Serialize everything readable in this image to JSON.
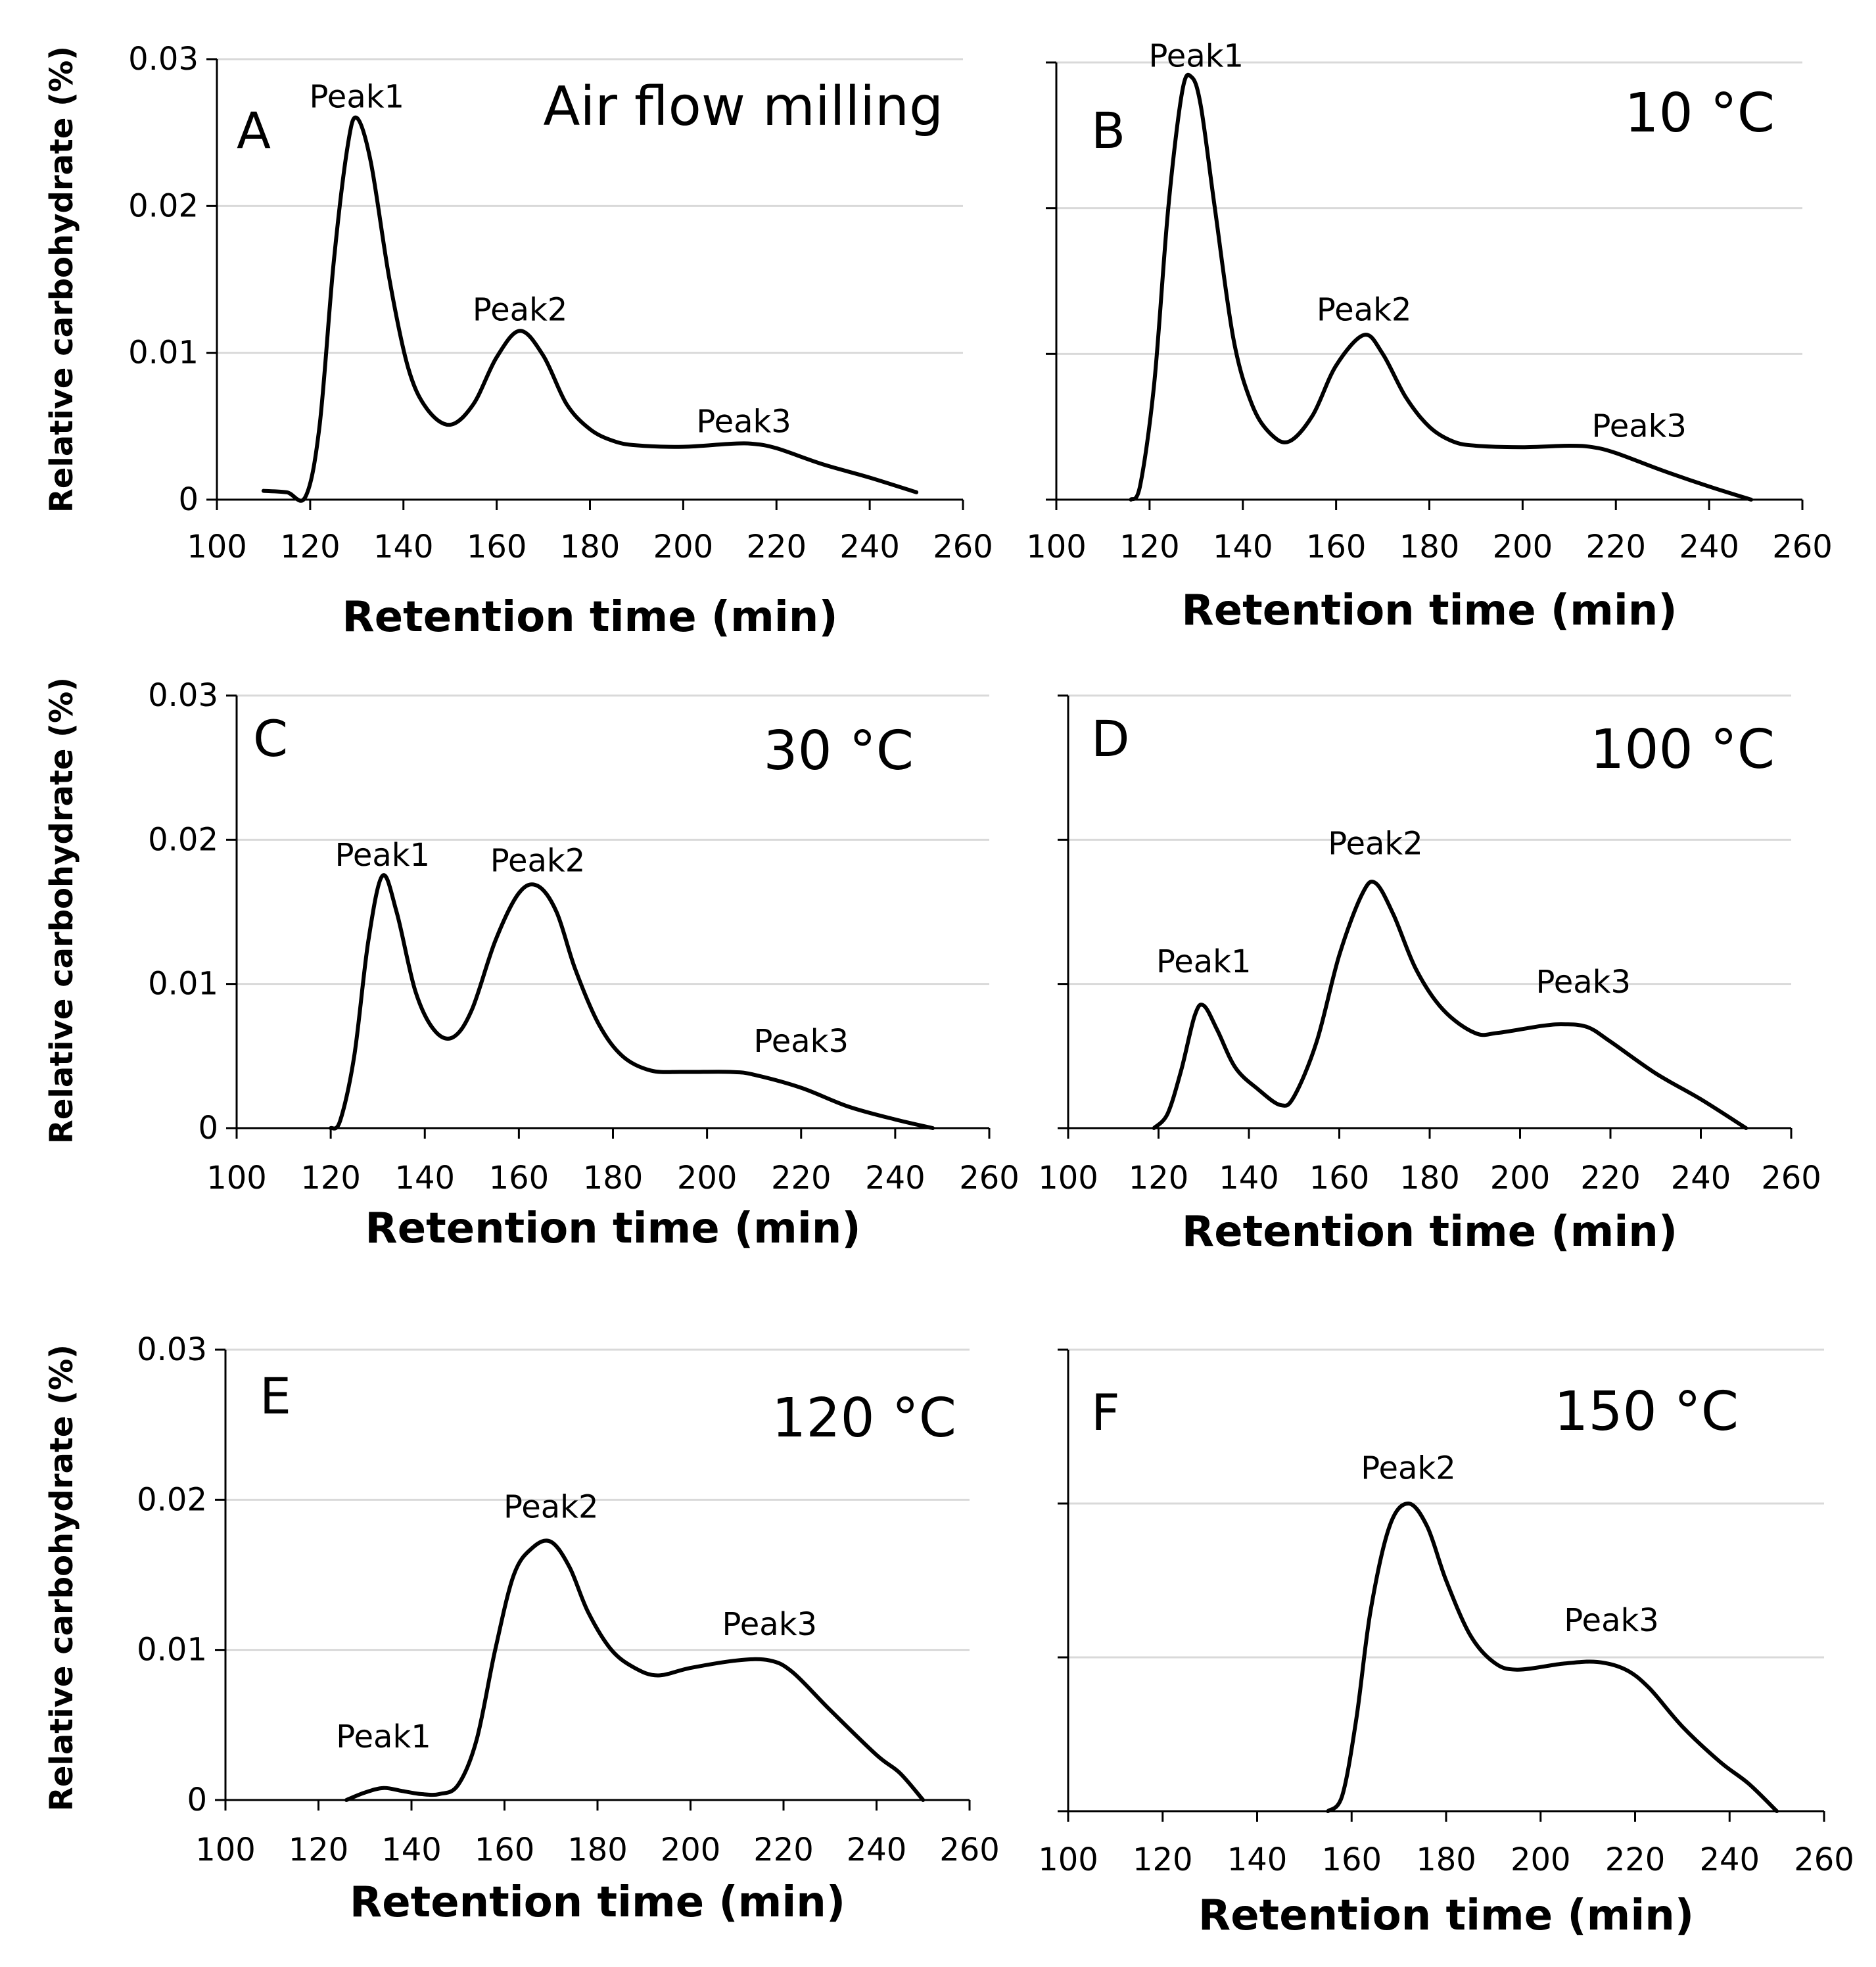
{
  "xlabel": "Retention time (min)",
  "ylabel": "Relative carbohydrate (%)",
  "x_ticks": [
    "100",
    "120",
    "140",
    "160",
    "180",
    "200",
    "220",
    "240",
    "260"
  ],
  "y_ticks": [
    "0",
    "0.01",
    "0.02",
    "0.03"
  ],
  "chart_data": [
    {
      "type": "line",
      "panel": "A",
      "title": "Air flow milling",
      "xlabel": "Retention time (min)",
      "ylabel": "Relative carbohydrate (%)",
      "xlim": [
        100,
        260
      ],
      "ylim": [
        0,
        0.03
      ],
      "show_y_tick_labels": true,
      "series": [
        {
          "name": "A",
          "points": [
            [
              110,
              0.0006
            ],
            [
              115,
              0.0005
            ],
            [
              119,
              0.0002
            ],
            [
              122,
              0.005
            ],
            [
              125,
              0.016
            ],
            [
              128,
              0.024
            ],
            [
              130,
              0.026
            ],
            [
              133,
              0.023
            ],
            [
              137,
              0.015
            ],
            [
              141,
              0.009
            ],
            [
              145,
              0.0062
            ],
            [
              150,
              0.0051
            ],
            [
              155,
              0.0065
            ],
            [
              160,
              0.0097
            ],
            [
              165,
              0.0115
            ],
            [
              170,
              0.0098
            ],
            [
              175,
              0.0065
            ],
            [
              180,
              0.0048
            ],
            [
              185,
              0.004
            ],
            [
              190,
              0.0037
            ],
            [
              200,
              0.0036
            ],
            [
              210,
              0.0038
            ],
            [
              215,
              0.0038
            ],
            [
              220,
              0.0035
            ],
            [
              230,
              0.0024
            ],
            [
              240,
              0.0015
            ],
            [
              250,
              0.0005
            ]
          ]
        }
      ],
      "annotations": [
        {
          "text": "Peak1",
          "x": 130,
          "y": 0.0267
        },
        {
          "text": "Peak2",
          "x": 165,
          "y": 0.0122
        },
        {
          "text": "Peak3",
          "x": 213,
          "y": 0.0046
        }
      ]
    },
    {
      "type": "line",
      "panel": "B",
      "title": "10 °C",
      "xlabel": "Retention time (min)",
      "ylabel": "",
      "xlim": [
        100,
        260
      ],
      "ylim": [
        0,
        0.03
      ],
      "show_y_tick_labels": false,
      "series": [
        {
          "name": "B",
          "points": [
            [
              116,
              0
            ],
            [
              118,
              0.001
            ],
            [
              121,
              0.008
            ],
            [
              124,
              0.02
            ],
            [
              127,
              0.028
            ],
            [
              129,
              0.029
            ],
            [
              131,
              0.027
            ],
            [
              134,
              0.02
            ],
            [
              138,
              0.011
            ],
            [
              142,
              0.0065
            ],
            [
              146,
              0.0045
            ],
            [
              150,
              0.004
            ],
            [
              155,
              0.0058
            ],
            [
              160,
              0.0092
            ],
            [
              166,
              0.0113
            ],
            [
              170,
              0.01
            ],
            [
              175,
              0.007
            ],
            [
              180,
              0.005
            ],
            [
              185,
              0.004
            ],
            [
              190,
              0.0037
            ],
            [
              200,
              0.0036
            ],
            [
              210,
              0.0037
            ],
            [
              215,
              0.0036
            ],
            [
              220,
              0.0032
            ],
            [
              230,
              0.002
            ],
            [
              240,
              0.0009
            ],
            [
              249,
              0
            ]
          ]
        }
      ],
      "annotations": [
        {
          "text": "Peak1",
          "x": 130,
          "y": 0.0297
        },
        {
          "text": "Peak2",
          "x": 166,
          "y": 0.0123
        },
        {
          "text": "Peak3",
          "x": 225,
          "y": 0.0043
        }
      ]
    },
    {
      "type": "line",
      "panel": "C",
      "title": "30 °C",
      "xlabel": "Retention time (min)",
      "ylabel": "Relative carbohydrate (%)",
      "xlim": [
        100,
        260
      ],
      "ylim": [
        0,
        0.03
      ],
      "show_y_tick_labels": true,
      "series": [
        {
          "name": "C",
          "points": [
            [
              120,
              0
            ],
            [
              122,
              0.0005
            ],
            [
              125,
              0.005
            ],
            [
              128,
              0.013
            ],
            [
              131,
              0.0175
            ],
            [
              134,
              0.015
            ],
            [
              138,
              0.0095
            ],
            [
              142,
              0.0068
            ],
            [
              146,
              0.0063
            ],
            [
              150,
              0.0082
            ],
            [
              155,
              0.013
            ],
            [
              160,
              0.0163
            ],
            [
              164,
              0.0168
            ],
            [
              168,
              0.015
            ],
            [
              172,
              0.011
            ],
            [
              177,
              0.0072
            ],
            [
              182,
              0.005
            ],
            [
              188,
              0.004
            ],
            [
              195,
              0.0039
            ],
            [
              205,
              0.0039
            ],
            [
              210,
              0.0037
            ],
            [
              220,
              0.0028
            ],
            [
              230,
              0.0015
            ],
            [
              240,
              0.0006
            ],
            [
              248,
              0
            ]
          ]
        }
      ],
      "annotations": [
        {
          "text": "Peak1",
          "x": 131,
          "y": 0.0182
        },
        {
          "text": "Peak2",
          "x": 164,
          "y": 0.0178
        },
        {
          "text": "Peak3",
          "x": 220,
          "y": 0.0053
        }
      ]
    },
    {
      "type": "line",
      "panel": "D",
      "title": "100 °C",
      "xlabel": "Retention time (min)",
      "ylabel": "",
      "xlim": [
        100,
        260
      ],
      "ylim": [
        0,
        0.03
      ],
      "show_y_tick_labels": false,
      "series": [
        {
          "name": "D",
          "points": [
            [
              119,
              0
            ],
            [
              122,
              0.001
            ],
            [
              125,
              0.004
            ],
            [
              128,
              0.0078
            ],
            [
              130,
              0.0085
            ],
            [
              133,
              0.0068
            ],
            [
              137,
              0.0042
            ],
            [
              142,
              0.0027
            ],
            [
              147,
              0.0016
            ],
            [
              150,
              0.0022
            ],
            [
              155,
              0.006
            ],
            [
              160,
              0.012
            ],
            [
              165,
              0.0162
            ],
            [
              168,
              0.017
            ],
            [
              172,
              0.0148
            ],
            [
              177,
              0.011
            ],
            [
              183,
              0.0082
            ],
            [
              190,
              0.0066
            ],
            [
              195,
              0.0066
            ],
            [
              205,
              0.0071
            ],
            [
              210,
              0.0072
            ],
            [
              215,
              0.007
            ],
            [
              220,
              0.006
            ],
            [
              230,
              0.0038
            ],
            [
              240,
              0.002
            ],
            [
              250,
              0
            ]
          ]
        }
      ],
      "annotations": [
        {
          "text": "Peak1",
          "x": 130,
          "y": 0.0108
        },
        {
          "text": "Peak2",
          "x": 168,
          "y": 0.019
        },
        {
          "text": "Peak3",
          "x": 214,
          "y": 0.0094
        }
      ]
    },
    {
      "type": "line",
      "panel": "E",
      "title": "120 °C",
      "xlabel": "Retention time (min)",
      "ylabel": "Relative carbohydrate (%)",
      "xlim": [
        100,
        260
      ],
      "ylim": [
        0,
        0.03
      ],
      "show_y_tick_labels": true,
      "series": [
        {
          "name": "E",
          "points": [
            [
              126,
              0
            ],
            [
              130,
              0.0005
            ],
            [
              134,
              0.0008
            ],
            [
              138,
              0.0006
            ],
            [
              142,
              0.0004
            ],
            [
              146,
              0.0004
            ],
            [
              150,
              0.001
            ],
            [
              154,
              0.004
            ],
            [
              158,
              0.01
            ],
            [
              162,
              0.015
            ],
            [
              166,
              0.0168
            ],
            [
              170,
              0.0172
            ],
            [
              174,
              0.0155
            ],
            [
              178,
              0.0125
            ],
            [
              183,
              0.01
            ],
            [
              188,
              0.0088
            ],
            [
              193,
              0.0083
            ],
            [
              200,
              0.0088
            ],
            [
              210,
              0.0093
            ],
            [
              217,
              0.0093
            ],
            [
              222,
              0.0085
            ],
            [
              230,
              0.006
            ],
            [
              240,
              0.003
            ],
            [
              245,
              0.0018
            ],
            [
              250,
              0
            ]
          ]
        }
      ],
      "annotations": [
        {
          "text": "Peak1",
          "x": 134,
          "y": 0.0035
        },
        {
          "text": "Peak2",
          "x": 170,
          "y": 0.0188
        },
        {
          "text": "Peak3",
          "x": 217,
          "y": 0.011
        }
      ]
    },
    {
      "type": "line",
      "panel": "F",
      "title": "150 °C",
      "xlabel": "Retention time (min)",
      "ylabel": "",
      "xlim": [
        100,
        260
      ],
      "ylim": [
        0,
        0.03
      ],
      "show_y_tick_labels": false,
      "series": [
        {
          "name": "F",
          "points": [
            [
              155,
              0
            ],
            [
              158,
              0.001
            ],
            [
              161,
              0.006
            ],
            [
              164,
              0.013
            ],
            [
              168,
              0.0185
            ],
            [
              172,
              0.02
            ],
            [
              176,
              0.0185
            ],
            [
              180,
              0.015
            ],
            [
              185,
              0.0115
            ],
            [
              190,
              0.0097
            ],
            [
              195,
              0.0092
            ],
            [
              205,
              0.0096
            ],
            [
              212,
              0.0097
            ],
            [
              218,
              0.0092
            ],
            [
              223,
              0.008
            ],
            [
              230,
              0.0055
            ],
            [
              238,
              0.0032
            ],
            [
              244,
              0.0018
            ],
            [
              250,
              0
            ]
          ]
        }
      ],
      "annotations": [
        {
          "text": "Peak2",
          "x": 172,
          "y": 0.0216
        },
        {
          "text": "Peak3",
          "x": 215,
          "y": 0.0117
        }
      ]
    }
  ]
}
